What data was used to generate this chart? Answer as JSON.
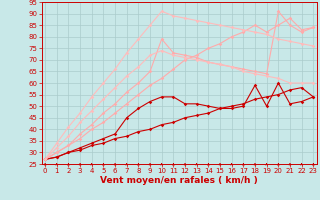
{
  "xlabel": "Vent moyen/en rafales ( km/h )",
  "xlim": [
    0,
    23
  ],
  "ylim": [
    25,
    95
  ],
  "yticks": [
    25,
    30,
    35,
    40,
    45,
    50,
    55,
    60,
    65,
    70,
    75,
    80,
    85,
    90,
    95
  ],
  "xticks": [
    0,
    1,
    2,
    3,
    4,
    5,
    6,
    7,
    8,
    9,
    10,
    11,
    12,
    13,
    14,
    15,
    16,
    17,
    18,
    19,
    20,
    21,
    22,
    23
  ],
  "background_color": "#c8e8e8",
  "grid_color": "#aacccc",
  "lines": [
    {
      "x": [
        0,
        1,
        2,
        3,
        4,
        5,
        6,
        7,
        8,
        9,
        10,
        11,
        12,
        13,
        14,
        15,
        16,
        17,
        18,
        19,
        20,
        21,
        22,
        23
      ],
      "y": [
        27,
        28,
        30,
        31,
        33,
        34,
        36,
        37,
        39,
        40,
        42,
        43,
        45,
        46,
        47,
        49,
        50,
        51,
        53,
        54,
        55,
        57,
        58,
        54
      ],
      "color": "#cc0000",
      "lw": 0.8,
      "marker": "D",
      "ms": 1.8
    },
    {
      "x": [
        0,
        1,
        2,
        3,
        4,
        5,
        6,
        7,
        8,
        9,
        10,
        11,
        12,
        13,
        14,
        15,
        16,
        17,
        18,
        19,
        20,
        21,
        22,
        23
      ],
      "y": [
        27,
        28,
        30,
        32,
        34,
        36,
        38,
        45,
        49,
        52,
        54,
        54,
        51,
        51,
        50,
        49,
        49,
        50,
        59,
        50,
        60,
        51,
        52,
        54
      ],
      "color": "#cc0000",
      "lw": 0.8,
      "marker": "D",
      "ms": 1.8
    },
    {
      "x": [
        0,
        1,
        2,
        3,
        4,
        5,
        6,
        7,
        8,
        9,
        10,
        11,
        12,
        13,
        14,
        15,
        16,
        17,
        18,
        19,
        20,
        21,
        22,
        23
      ],
      "y": [
        27,
        30,
        33,
        38,
        42,
        47,
        51,
        56,
        60,
        65,
        79,
        73,
        72,
        71,
        69,
        68,
        67,
        66,
        65,
        64,
        91,
        85,
        82,
        84
      ],
      "color": "#ffaaaa",
      "lw": 0.8,
      "marker": "D",
      "ms": 1.8
    },
    {
      "x": [
        0,
        1,
        2,
        3,
        4,
        5,
        6,
        7,
        8,
        9,
        10,
        11,
        12,
        13,
        14,
        15,
        16,
        17,
        18,
        19,
        20,
        21,
        22,
        23
      ],
      "y": [
        27,
        30,
        33,
        36,
        40,
        43,
        47,
        51,
        55,
        59,
        62,
        66,
        70,
        72,
        75,
        77,
        80,
        82,
        85,
        82,
        85,
        88,
        83,
        84
      ],
      "color": "#ffaaaa",
      "lw": 0.8,
      "marker": "D",
      "ms": 1.8
    },
    {
      "x": [
        0,
        1,
        2,
        3,
        4,
        5,
        6,
        7,
        8,
        9,
        10,
        11,
        12,
        13,
        14,
        15,
        16,
        17,
        18,
        19,
        20,
        21,
        22,
        23
      ],
      "y": [
        27,
        32,
        37,
        43,
        48,
        53,
        58,
        63,
        67,
        72,
        74,
        72,
        71,
        70,
        69,
        68,
        67,
        65,
        64,
        63,
        62,
        60,
        60,
        60
      ],
      "color": "#ffbbbb",
      "lw": 0.8,
      "marker": "D",
      "ms": 1.8
    },
    {
      "x": [
        0,
        1,
        2,
        3,
        4,
        5,
        6,
        7,
        8,
        9,
        10,
        11,
        12,
        13,
        14,
        15,
        16,
        17,
        18,
        19,
        20,
        21,
        22,
        23
      ],
      "y": [
        27,
        34,
        41,
        47,
        54,
        60,
        66,
        73,
        79,
        85,
        91,
        89,
        88,
        87,
        86,
        85,
        84,
        83,
        82,
        81,
        79,
        78,
        77,
        76
      ],
      "color": "#ffbbbb",
      "lw": 0.8,
      "marker": "D",
      "ms": 1.8
    }
  ],
  "tick_fontsize": 5.0,
  "xlabel_fontsize": 6.5,
  "label_color": "#cc0000",
  "tick_color": "#cc0000",
  "spine_color": "#cc0000"
}
